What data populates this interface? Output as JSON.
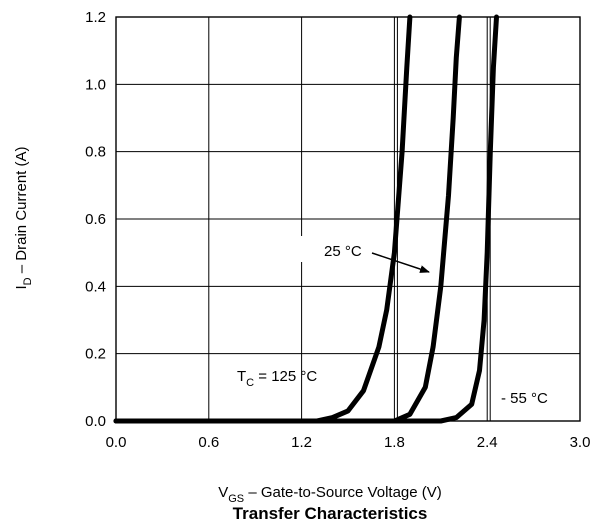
{
  "chart_data": {
    "type": "line",
    "title": "Transfer Characteristics",
    "xlabel": {
      "main": "V",
      "sub": "GS",
      "rest": " – Gate-to-Source Voltage (V)"
    },
    "ylabel": {
      "main": "I",
      "sub": "D",
      "rest": " – Drain Current (A)"
    },
    "xlim": [
      0.0,
      3.0
    ],
    "ylim": [
      0.0,
      1.2
    ],
    "xticks": [
      "0.0",
      "0.6",
      "1.2",
      "1.8",
      "2.4",
      "3.0"
    ],
    "yticks": [
      "0.0",
      "0.2",
      "0.4",
      "0.6",
      "0.8",
      "1.0",
      "1.2"
    ],
    "grid": true,
    "extra_vlines": [
      1.8,
      2.4
    ],
    "series": [
      {
        "name": "125 °C",
        "x": [
          0.0,
          1.3,
          1.4,
          1.5,
          1.6,
          1.7,
          1.75,
          1.8,
          1.85,
          1.88,
          1.9
        ],
        "y": [
          0.0,
          0.0,
          0.01,
          0.03,
          0.09,
          0.22,
          0.33,
          0.5,
          0.8,
          1.05,
          1.2
        ]
      },
      {
        "name": "25 °C",
        "x": [
          0.0,
          1.8,
          1.9,
          2.0,
          2.05,
          2.1,
          2.15,
          2.18,
          2.2,
          2.22
        ],
        "y": [
          0.0,
          0.0,
          0.02,
          0.1,
          0.22,
          0.4,
          0.67,
          0.9,
          1.08,
          1.2
        ]
      },
      {
        "name": "- 55 °C",
        "x": [
          0.0,
          2.1,
          2.2,
          2.3,
          2.35,
          2.38,
          2.4,
          2.42,
          2.44,
          2.46
        ],
        "y": [
          0.0,
          0.0,
          0.01,
          0.05,
          0.15,
          0.3,
          0.5,
          0.8,
          1.05,
          1.2
        ]
      }
    ],
    "annotations": {
      "t125": {
        "main": "T",
        "sub": "C",
        "rest": " = 125 °C"
      },
      "t25": "25 °C",
      "t55": "- 55 °C"
    }
  }
}
